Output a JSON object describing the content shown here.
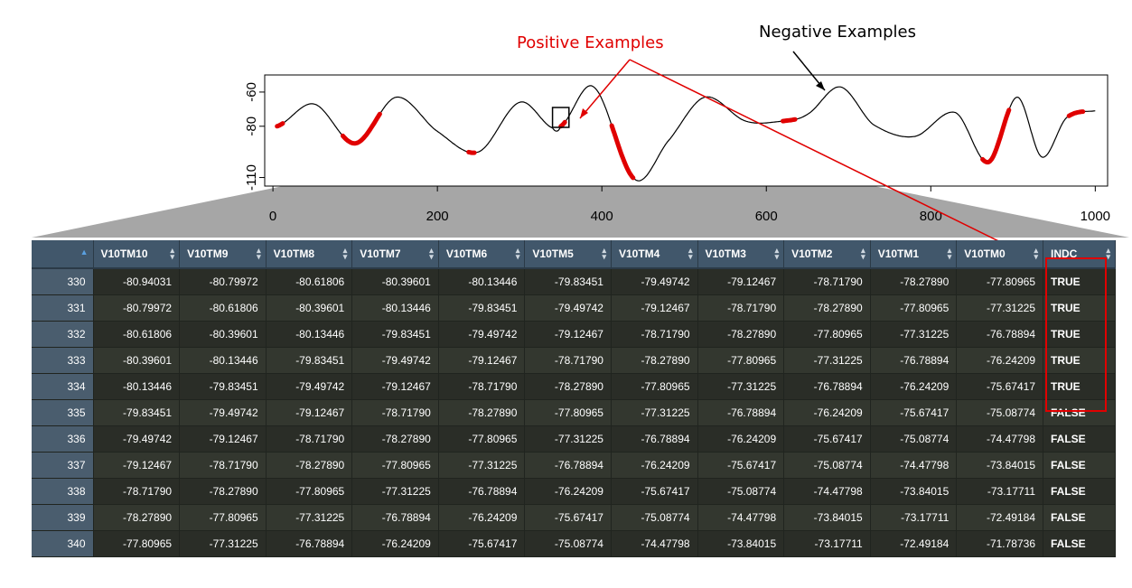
{
  "annotations": {
    "positive_label": "Positive Examples",
    "negative_label": "Negative Examples",
    "positive_color": "#e00000",
    "negative_color": "#000000"
  },
  "chart_data": {
    "type": "line",
    "title": "",
    "xlabel": "",
    "ylabel": "",
    "xlim": [
      -10,
      1015
    ],
    "ylim": [
      -115,
      -50
    ],
    "x_ticks": [
      0,
      200,
      400,
      600,
      800,
      1000
    ],
    "y_ticks": [
      -60,
      -80,
      -110
    ],
    "y_tick_labels": [
      "-60",
      "-80",
      "-110"
    ],
    "series": [
      {
        "x": [
          5,
          50,
          100,
          150,
          200,
          250,
          300,
          340,
          350,
          390,
          440,
          480,
          525,
          575,
          620,
          650,
          690,
          730,
          780,
          830,
          870,
          905,
          935,
          965,
          1000
        ],
        "y": [
          -80,
          -67,
          -90,
          -63,
          -83,
          -95,
          -66,
          -81,
          -80,
          -57,
          -111,
          -89,
          -63,
          -77,
          -77,
          -73,
          -57,
          -79,
          -86,
          -72,
          -101,
          -63,
          -98,
          -75,
          -71
        ],
        "color": "#000000"
      }
    ],
    "highlight_segments": [
      [
        5,
        12
      ],
      [
        85,
        130
      ],
      [
        238,
        245
      ],
      [
        350,
        355
      ],
      [
        412,
        438
      ],
      [
        620,
        635
      ],
      [
        863,
        895
      ],
      [
        968,
        985
      ]
    ],
    "highlight_color": "#e00000",
    "zoom_box_x": [
      340,
      360
    ]
  },
  "table": {
    "columns": [
      "V10TM10",
      "V10TM9",
      "V10TM8",
      "V10TM7",
      "V10TM6",
      "V10TM5",
      "V10TM4",
      "V10TM3",
      "V10TM2",
      "V10TM1",
      "V10TM0",
      "INDC"
    ],
    "rows": [
      {
        "id": "330",
        "cells": [
          "-80.94031",
          "-80.79972",
          "-80.61806",
          "-80.39601",
          "-80.13446",
          "-79.83451",
          "-79.49742",
          "-79.12467",
          "-78.71790",
          "-78.27890",
          "-77.80965",
          "TRUE"
        ]
      },
      {
        "id": "331",
        "cells": [
          "-80.79972",
          "-80.61806",
          "-80.39601",
          "-80.13446",
          "-79.83451",
          "-79.49742",
          "-79.12467",
          "-78.71790",
          "-78.27890",
          "-77.80965",
          "-77.31225",
          "TRUE"
        ]
      },
      {
        "id": "332",
        "cells": [
          "-80.61806",
          "-80.39601",
          "-80.13446",
          "-79.83451",
          "-79.49742",
          "-79.12467",
          "-78.71790",
          "-78.27890",
          "-77.80965",
          "-77.31225",
          "-76.78894",
          "TRUE"
        ]
      },
      {
        "id": "333",
        "cells": [
          "-80.39601",
          "-80.13446",
          "-79.83451",
          "-79.49742",
          "-79.12467",
          "-78.71790",
          "-78.27890",
          "-77.80965",
          "-77.31225",
          "-76.78894",
          "-76.24209",
          "TRUE"
        ]
      },
      {
        "id": "334",
        "cells": [
          "-80.13446",
          "-79.83451",
          "-79.49742",
          "-79.12467",
          "-78.71790",
          "-78.27890",
          "-77.80965",
          "-77.31225",
          "-76.78894",
          "-76.24209",
          "-75.67417",
          "TRUE"
        ]
      },
      {
        "id": "335",
        "cells": [
          "-79.83451",
          "-79.49742",
          "-79.12467",
          "-78.71790",
          "-78.27890",
          "-77.80965",
          "-77.31225",
          "-76.78894",
          "-76.24209",
          "-75.67417",
          "-75.08774",
          "FALSE"
        ]
      },
      {
        "id": "336",
        "cells": [
          "-79.49742",
          "-79.12467",
          "-78.71790",
          "-78.27890",
          "-77.80965",
          "-77.31225",
          "-76.78894",
          "-76.24209",
          "-75.67417",
          "-75.08774",
          "-74.47798",
          "FALSE"
        ]
      },
      {
        "id": "337",
        "cells": [
          "-79.12467",
          "-78.71790",
          "-78.27890",
          "-77.80965",
          "-77.31225",
          "-76.78894",
          "-76.24209",
          "-75.67417",
          "-75.08774",
          "-74.47798",
          "-73.84015",
          "FALSE"
        ]
      },
      {
        "id": "338",
        "cells": [
          "-78.71790",
          "-78.27890",
          "-77.80965",
          "-77.31225",
          "-76.78894",
          "-76.24209",
          "-75.67417",
          "-75.08774",
          "-74.47798",
          "-73.84015",
          "-73.17711",
          "FALSE"
        ]
      },
      {
        "id": "339",
        "cells": [
          "-78.27890",
          "-77.80965",
          "-77.31225",
          "-76.78894",
          "-76.24209",
          "-75.67417",
          "-75.08774",
          "-74.47798",
          "-73.84015",
          "-73.17711",
          "-72.49184",
          "FALSE"
        ]
      },
      {
        "id": "340",
        "cells": [
          "-77.80965",
          "-77.31225",
          "-76.78894",
          "-76.24209",
          "-75.67417",
          "-75.08774",
          "-74.47798",
          "-73.84015",
          "-73.17711",
          "-72.49184",
          "-71.78736",
          "FALSE"
        ]
      }
    ]
  }
}
